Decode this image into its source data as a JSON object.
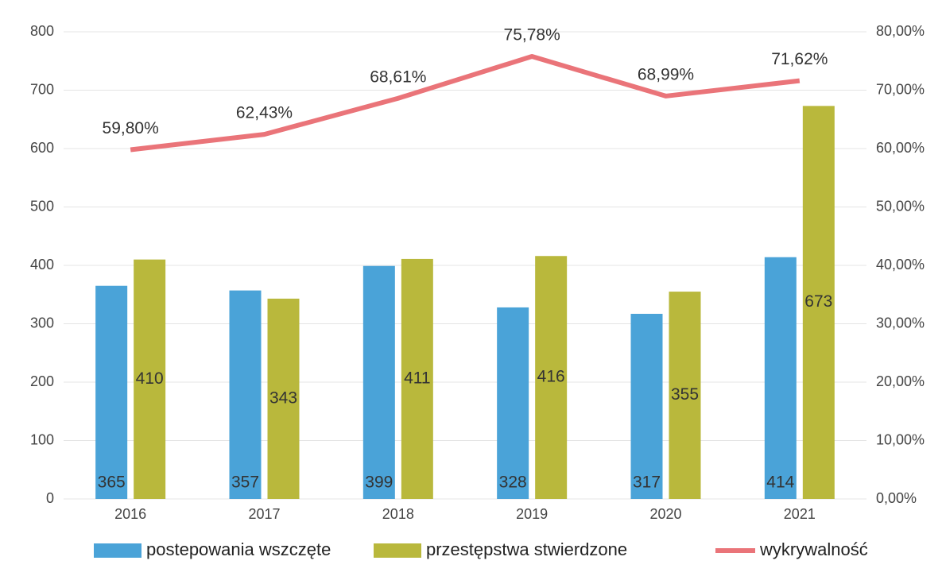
{
  "chart_data": {
    "type": "bar",
    "categories": [
      "2016",
      "2017",
      "2018",
      "2019",
      "2020",
      "2021"
    ],
    "series": [
      {
        "name": "postepowania wszczęte",
        "type": "bar",
        "color": "#4aa3d8",
        "values": [
          365,
          357,
          399,
          328,
          317,
          414
        ]
      },
      {
        "name": "przestępstwa stwierdzone",
        "type": "bar",
        "color": "#b9b83c",
        "values": [
          410,
          343,
          411,
          416,
          355,
          673
        ]
      },
      {
        "name": "wykrywalność",
        "type": "line",
        "axis": "y2",
        "color": "#ea7479",
        "values": [
          59.8,
          62.43,
          68.61,
          75.78,
          68.99,
          71.62
        ],
        "value_labels": [
          "59,80%",
          "62,43%",
          "68,61%",
          "75,78%",
          "68,99%",
          "71,62%"
        ]
      }
    ],
    "ylim": [
      0,
      800
    ],
    "yticks": [
      0,
      100,
      200,
      300,
      400,
      500,
      600,
      700,
      800
    ],
    "y2lim": [
      0,
      80
    ],
    "y2ticks": [
      {
        "value": 0,
        "label": "0,00%"
      },
      {
        "value": 10,
        "label": "10,00%"
      },
      {
        "value": 20,
        "label": "20,00%"
      },
      {
        "value": 30,
        "label": "30,00%"
      },
      {
        "value": 40,
        "label": "40,00%"
      },
      {
        "value": 50,
        "label": "50,00%"
      },
      {
        "value": 60,
        "label": "60,00%"
      },
      {
        "value": 70,
        "label": "70,00%"
      },
      {
        "value": 80,
        "label": "80,00%"
      }
    ],
    "grid": true,
    "legend": "bottom"
  }
}
